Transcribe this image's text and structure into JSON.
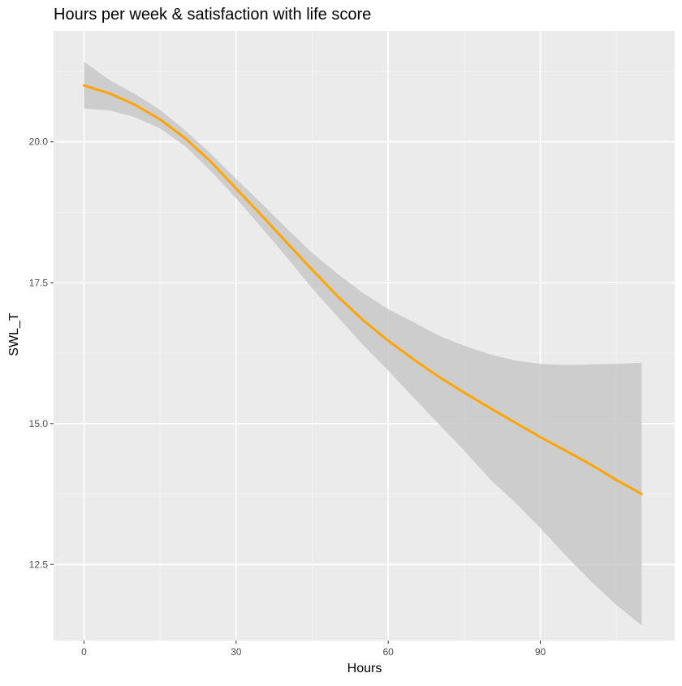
{
  "chart_data": {
    "type": "line",
    "title": "Hours per week & satisfaction with life score",
    "xlabel": "Hours",
    "ylabel": "SWL_T",
    "xlim": [
      -6,
      116.5
    ],
    "ylim": [
      11.15,
      21.97
    ],
    "x_ticks": [
      0,
      30,
      60,
      90
    ],
    "x_tick_labels": [
      "0",
      "30",
      "60",
      "90"
    ],
    "x_minor_ticks": [
      15,
      45,
      75,
      105
    ],
    "y_ticks": [
      12.5,
      15.0,
      17.5,
      20.0
    ],
    "y_tick_labels": [
      "12.5",
      "15.0",
      "17.5",
      "20.0"
    ],
    "y_minor_ticks": [
      13.75,
      16.25,
      18.75,
      21.25
    ],
    "grid": true,
    "legend": "none",
    "series": [
      {
        "color": "#FFA500",
        "band_color": "#C8C8C8",
        "points": [
          {
            "x": 0,
            "y": 21.0,
            "lo": 20.59,
            "hi": 21.42
          },
          {
            "x": 5,
            "y": 20.86,
            "lo": 20.56,
            "hi": 21.1
          },
          {
            "x": 10,
            "y": 20.66,
            "lo": 20.44,
            "hi": 20.85
          },
          {
            "x": 15,
            "y": 20.4,
            "lo": 20.24,
            "hi": 20.57
          },
          {
            "x": 20,
            "y": 20.06,
            "lo": 19.92,
            "hi": 20.2
          },
          {
            "x": 25,
            "y": 19.65,
            "lo": 19.48,
            "hi": 19.79
          },
          {
            "x": 30,
            "y": 19.17,
            "lo": 19.0,
            "hi": 19.34
          },
          {
            "x": 35,
            "y": 18.7,
            "lo": 18.48,
            "hi": 18.91
          },
          {
            "x": 40,
            "y": 18.21,
            "lo": 17.95,
            "hi": 18.46
          },
          {
            "x": 45,
            "y": 17.73,
            "lo": 17.4,
            "hi": 18.03
          },
          {
            "x": 50,
            "y": 17.26,
            "lo": 16.9,
            "hi": 17.66
          },
          {
            "x": 55,
            "y": 16.84,
            "lo": 16.4,
            "hi": 17.32
          },
          {
            "x": 60,
            "y": 16.47,
            "lo": 15.94,
            "hi": 17.03
          },
          {
            "x": 65,
            "y": 16.14,
            "lo": 15.46,
            "hi": 16.8
          },
          {
            "x": 70,
            "y": 15.83,
            "lo": 14.99,
            "hi": 16.56
          },
          {
            "x": 75,
            "y": 15.55,
            "lo": 14.52,
            "hi": 16.38
          },
          {
            "x": 80,
            "y": 15.28,
            "lo": 14.02,
            "hi": 16.23
          },
          {
            "x": 85,
            "y": 15.02,
            "lo": 13.6,
            "hi": 16.12
          },
          {
            "x": 90,
            "y": 14.76,
            "lo": 13.15,
            "hi": 16.06
          },
          {
            "x": 95,
            "y": 14.52,
            "lo": 12.66,
            "hi": 16.04
          },
          {
            "x": 100,
            "y": 14.27,
            "lo": 12.2,
            "hi": 16.05
          },
          {
            "x": 105,
            "y": 14.0,
            "lo": 11.78,
            "hi": 16.06
          },
          {
            "x": 110,
            "y": 13.75,
            "lo": 11.42,
            "hi": 16.08
          }
        ]
      }
    ]
  }
}
